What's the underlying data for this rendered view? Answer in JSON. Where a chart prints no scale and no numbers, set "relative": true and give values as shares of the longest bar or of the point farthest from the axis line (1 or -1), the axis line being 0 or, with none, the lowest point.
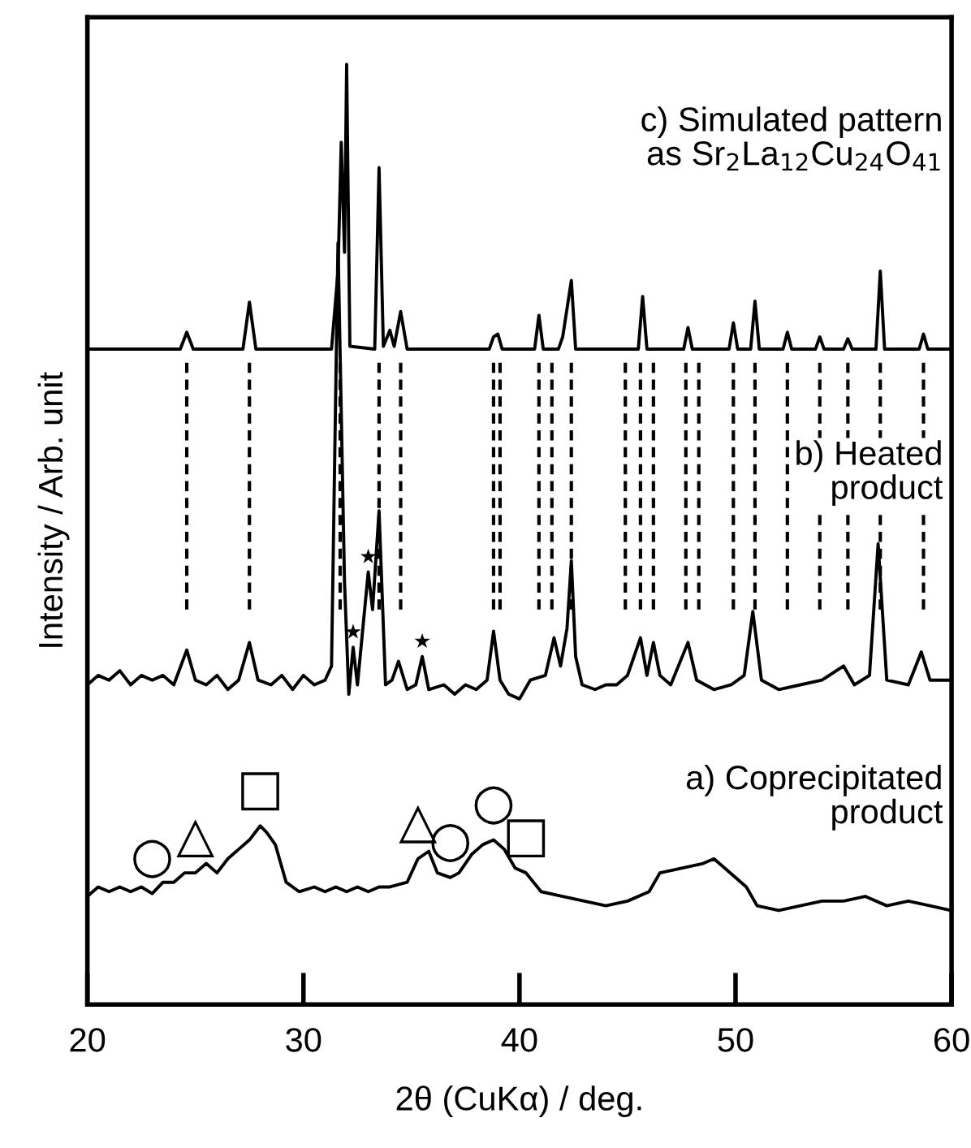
{
  "chart_data": {
    "type": "line",
    "relative": true,
    "xlabel": "2θ (CuKα) / deg.",
    "ylabel": "Intensity / Arb. unit",
    "xlim": [
      20,
      60
    ],
    "xticks": [
      20,
      30,
      40,
      50,
      60
    ],
    "grid": false,
    "legend": false,
    "marker": "none",
    "line_style": "solid",
    "series": [
      {
        "name": "a) Coprecipitated\nproduct",
        "color": "#000000",
        "x": [
          20,
          20.5,
          21,
          21.5,
          22,
          22.5,
          23,
          23.5,
          24,
          24.5,
          25,
          25.5,
          26,
          26.5,
          27,
          27.5,
          28,
          28.3,
          28.7,
          29.2,
          29.8,
          30.5,
          31,
          31.5,
          32,
          32.5,
          33,
          33.5,
          34,
          34.8,
          35.3,
          35.8,
          36.2,
          36.8,
          37.2,
          37.8,
          38.3,
          38.8,
          39.3,
          39.8,
          40.3,
          41,
          42,
          43,
          44,
          45,
          46,
          46.5,
          47.5,
          48.5,
          49,
          49.5,
          50.5,
          51,
          52,
          53,
          54,
          55,
          56,
          57,
          58,
          59,
          60
        ],
        "values": [
          0.115,
          0.125,
          0.12,
          0.125,
          0.12,
          0.125,
          0.118,
          0.13,
          0.13,
          0.14,
          0.14,
          0.15,
          0.14,
          0.155,
          0.165,
          0.175,
          0.19,
          0.183,
          0.17,
          0.13,
          0.12,
          0.125,
          0.12,
          0.125,
          0.12,
          0.125,
          0.12,
          0.125,
          0.125,
          0.13,
          0.155,
          0.163,
          0.14,
          0.135,
          0.14,
          0.16,
          0.17,
          0.175,
          0.165,
          0.145,
          0.14,
          0.12,
          0.115,
          0.11,
          0.105,
          0.11,
          0.12,
          0.14,
          0.145,
          0.15,
          0.155,
          0.145,
          0.125,
          0.105,
          0.1,
          0.105,
          0.11,
          0.11,
          0.115,
          0.105,
          0.11,
          0.105,
          0.1
        ]
      },
      {
        "name": "b) Heated\nproduct",
        "color": "#000000",
        "x": [
          20,
          20.5,
          21,
          21.5,
          22,
          22.5,
          23,
          23.5,
          24,
          24.6,
          25,
          25.5,
          26,
          26.5,
          27,
          27.5,
          27.9,
          28.5,
          29,
          29.5,
          30,
          30.5,
          31,
          31.3,
          31.6,
          31.9,
          32.1,
          32.3,
          32.5,
          33,
          33.2,
          33.5,
          33.8,
          34.1,
          34.4,
          34.8,
          35.2,
          35.5,
          35.8,
          36.5,
          37,
          37.5,
          38,
          38.5,
          38.8,
          39.1,
          39.5,
          40,
          40.5,
          41.2,
          41.6,
          41.9,
          42.2,
          42.4,
          42.6,
          42.9,
          43.5,
          44,
          44.5,
          45,
          45.6,
          45.9,
          46.2,
          46.5,
          47,
          47.8,
          48.2,
          49,
          49.8,
          50.4,
          50.8,
          51.2,
          52,
          53,
          54,
          55,
          55.5,
          56.2,
          56.6,
          57,
          58,
          58.6,
          59,
          60
        ],
        "values": [
          0.34,
          0.35,
          0.345,
          0.355,
          0.34,
          0.35,
          0.345,
          0.35,
          0.34,
          0.377,
          0.345,
          0.34,
          0.35,
          0.335,
          0.345,
          0.385,
          0.345,
          0.34,
          0.35,
          0.335,
          0.35,
          0.34,
          0.345,
          0.36,
          0.81,
          0.45,
          0.33,
          0.38,
          0.34,
          0.46,
          0.42,
          0.525,
          0.34,
          0.345,
          0.365,
          0.335,
          0.34,
          0.37,
          0.335,
          0.34,
          0.33,
          0.34,
          0.335,
          0.345,
          0.397,
          0.345,
          0.33,
          0.325,
          0.345,
          0.35,
          0.39,
          0.36,
          0.4,
          0.472,
          0.37,
          0.34,
          0.335,
          0.34,
          0.34,
          0.35,
          0.39,
          0.35,
          0.385,
          0.35,
          0.34,
          0.385,
          0.345,
          0.335,
          0.34,
          0.35,
          0.418,
          0.345,
          0.335,
          0.34,
          0.345,
          0.36,
          0.34,
          0.35,
          0.49,
          0.345,
          0.34,
          0.375,
          0.345,
          0.345
        ]
      },
      {
        "name": "c) Simulated pattern\nas Sr$_{2}$La$_{12}$Cu$_{24}$O$_{41}$",
        "color": "#000000",
        "x": [
          20,
          24.3,
          24.6,
          24.9,
          27.2,
          27.5,
          27.8,
          31.3,
          31.6,
          31.75,
          31.9,
          32.0,
          32.15,
          33.3,
          33.5,
          33.7,
          34.0,
          34.2,
          34.5,
          34.8,
          38.6,
          38.8,
          39.0,
          39.2,
          40.7,
          40.9,
          41.1,
          41.8,
          42.0,
          42.4,
          42.6,
          45.5,
          45.7,
          45.9,
          47.6,
          47.8,
          48.0,
          49.7,
          49.9,
          50.1,
          50.7,
          50.9,
          51.1,
          52.2,
          52.4,
          52.6,
          53.7,
          53.9,
          54.1,
          55.0,
          55.2,
          55.4,
          56.5,
          56.7,
          56.9,
          58.5,
          58.7,
          58.9,
          60
        ],
        "values": [
          0.697,
          0.697,
          0.715,
          0.697,
          0.697,
          0.747,
          0.697,
          0.697,
          0.78,
          0.917,
          0.8,
          1.0,
          0.7,
          0.697,
          0.89,
          0.7,
          0.717,
          0.7,
          0.737,
          0.697,
          0.697,
          0.71,
          0.713,
          0.697,
          0.697,
          0.733,
          0.697,
          0.697,
          0.71,
          0.77,
          0.697,
          0.697,
          0.753,
          0.697,
          0.697,
          0.72,
          0.697,
          0.697,
          0.725,
          0.697,
          0.697,
          0.748,
          0.697,
          0.697,
          0.715,
          0.697,
          0.697,
          0.71,
          0.697,
          0.697,
          0.708,
          0.697,
          0.697,
          0.78,
          0.697,
          0.697,
          0.713,
          0.697,
          0.697
        ]
      }
    ],
    "ref_lines": [
      {
        "axis": "x",
        "value": 24.6,
        "line_style": "dashed",
        "color": "#000000"
      },
      {
        "axis": "x",
        "value": 27.5,
        "line_style": "dashed",
        "color": "#000000"
      },
      {
        "axis": "x",
        "value": 31.7,
        "line_style": "dashed",
        "color": "#000000"
      },
      {
        "axis": "x",
        "value": 33.5,
        "line_style": "dashed",
        "color": "#000000"
      },
      {
        "axis": "x",
        "value": 34.5,
        "line_style": "dashed",
        "color": "#000000"
      },
      {
        "axis": "x",
        "value": 38.8,
        "line_style": "dashed",
        "color": "#000000"
      },
      {
        "axis": "x",
        "value": 39.1,
        "line_style": "dashed",
        "color": "#000000"
      },
      {
        "axis": "x",
        "value": 40.9,
        "line_style": "dashed",
        "color": "#000000"
      },
      {
        "axis": "x",
        "value": 41.5,
        "line_style": "dashed",
        "color": "#000000"
      },
      {
        "axis": "x",
        "value": 42.4,
        "line_style": "dashed",
        "color": "#000000"
      },
      {
        "axis": "x",
        "value": 44.9,
        "line_style": "dashed",
        "color": "#000000"
      },
      {
        "axis": "x",
        "value": 45.6,
        "line_style": "dashed",
        "color": "#000000"
      },
      {
        "axis": "x",
        "value": 46.2,
        "line_style": "dashed",
        "color": "#000000"
      },
      {
        "axis": "x",
        "value": 47.7,
        "line_style": "dashed",
        "color": "#000000"
      },
      {
        "axis": "x",
        "value": 48.3,
        "line_style": "dashed",
        "color": "#000000"
      },
      {
        "axis": "x",
        "value": 49.9,
        "line_style": "dashed",
        "color": "#000000"
      },
      {
        "axis": "x",
        "value": 50.9,
        "line_style": "dashed",
        "color": "#000000"
      },
      {
        "axis": "x",
        "value": 52.4,
        "line_style": "dashed",
        "color": "#000000"
      },
      {
        "axis": "x",
        "value": 53.9,
        "line_style": "dashed",
        "color": "#000000"
      },
      {
        "axis": "x",
        "value": 55.2,
        "line_style": "dashed",
        "color": "#000000"
      },
      {
        "axis": "x",
        "value": 56.7,
        "line_style": "dashed",
        "color": "#000000"
      },
      {
        "axis": "x",
        "value": 58.7,
        "line_style": "dashed",
        "color": "#000000"
      }
    ],
    "annotations": [
      {
        "text": "○",
        "x": 23,
        "y": 0.118
      },
      {
        "text": "△",
        "x": 25,
        "y": 0.14
      },
      {
        "text": "□",
        "x": 28,
        "y": 0.19
      },
      {
        "text": "△",
        "x": 35.3,
        "y": 0.155
      },
      {
        "text": "○",
        "x": 36.8,
        "y": 0.135
      },
      {
        "text": "○",
        "x": 38.8,
        "y": 0.175
      },
      {
        "text": "□",
        "x": 40.3,
        "y": 0.14
      },
      {
        "text": "★",
        "x": 32.3,
        "y": 0.38
      },
      {
        "text": "★",
        "x": 33.0,
        "y": 0.46
      },
      {
        "text": "★",
        "x": 35.5,
        "y": 0.37
      }
    ]
  }
}
